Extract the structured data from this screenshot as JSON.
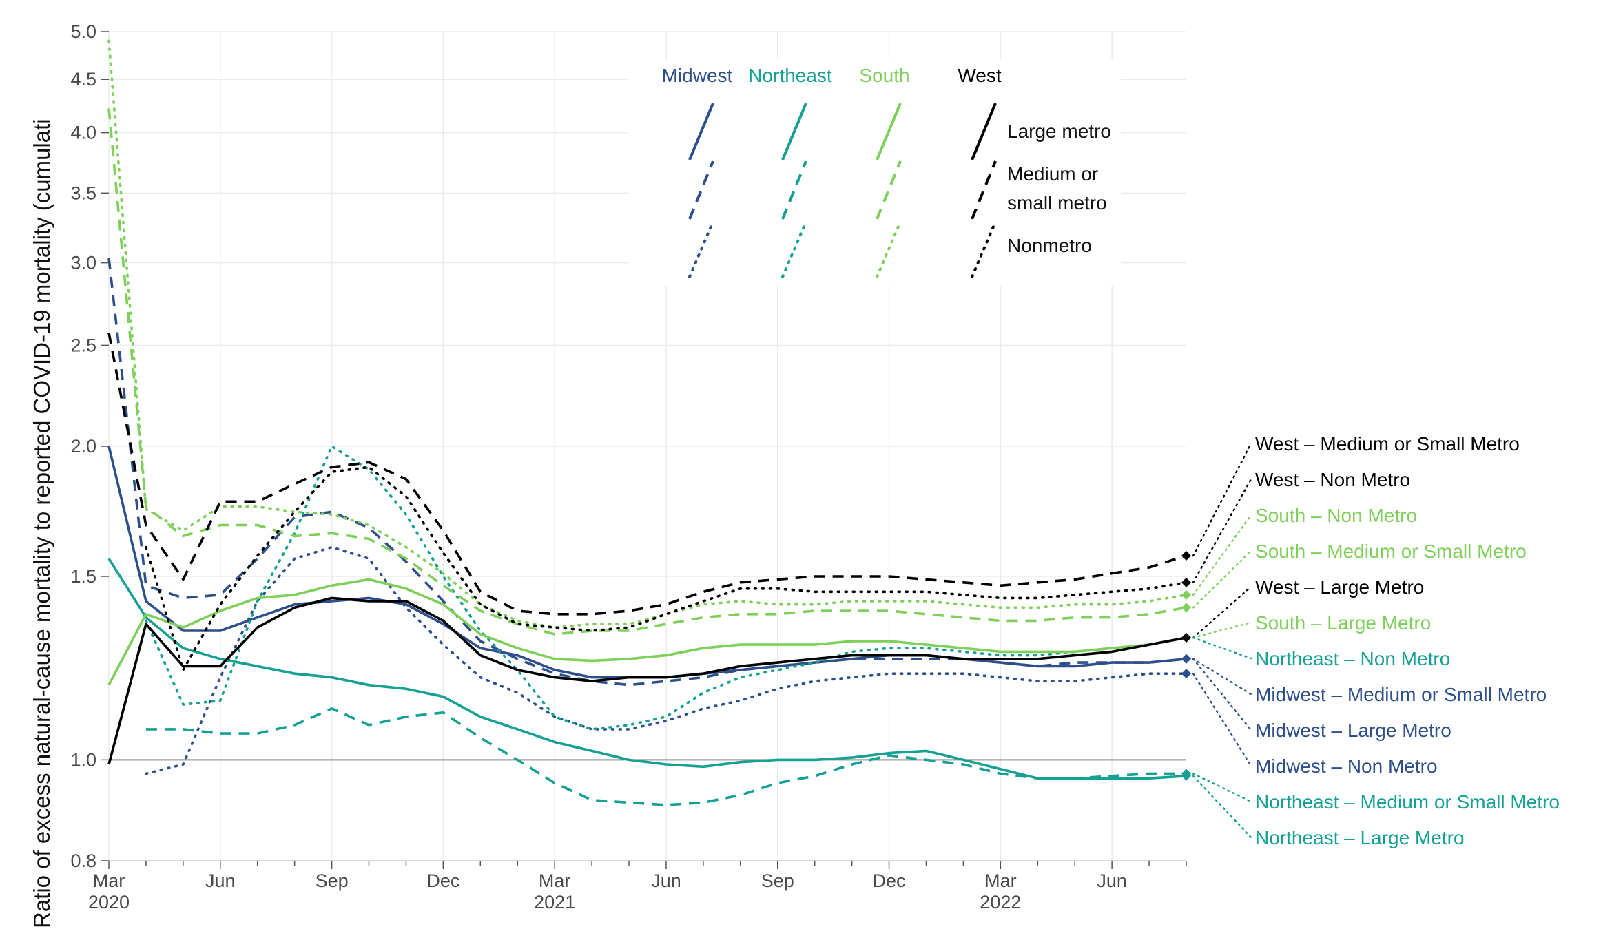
{
  "chart_data": {
    "type": "line",
    "title": "",
    "ylabel": "Ratio of excess natural-cause mortality to reported COVID-19 mortality (cumulati",
    "xlabel": "",
    "y_scale": "log",
    "ylim": [
      0.8,
      5.0
    ],
    "y_ticks": [
      {
        "value": 0.8,
        "label": "0.8"
      },
      {
        "value": 1.0,
        "label": "1.0"
      },
      {
        "value": 1.5,
        "label": "1.5"
      },
      {
        "value": 2.0,
        "label": "2.0"
      },
      {
        "value": 2.5,
        "label": "2.5"
      },
      {
        "value": 3.0,
        "label": "3.0"
      },
      {
        "value": 3.5,
        "label": "3.5"
      },
      {
        "value": 4.0,
        "label": "4.0"
      },
      {
        "value": 4.5,
        "label": "4.5"
      },
      {
        "value": 5.0,
        "label": "5.0"
      }
    ],
    "x": [
      "2020-03",
      "2020-04",
      "2020-05",
      "2020-06",
      "2020-07",
      "2020-08",
      "2020-09",
      "2020-10",
      "2020-11",
      "2020-12",
      "2021-01",
      "2021-02",
      "2021-03",
      "2021-04",
      "2021-05",
      "2021-06",
      "2021-07",
      "2021-08",
      "2021-09",
      "2021-10",
      "2021-11",
      "2021-12",
      "2022-01",
      "2022-02",
      "2022-03",
      "2022-04",
      "2022-05",
      "2022-06",
      "2022-07",
      "2022-08"
    ],
    "x_ticks": [
      {
        "index": 0,
        "label": "Mar",
        "sub": "2020"
      },
      {
        "index": 3,
        "label": "Jun",
        "sub": ""
      },
      {
        "index": 6,
        "label": "Sep",
        "sub": ""
      },
      {
        "index": 9,
        "label": "Dec",
        "sub": ""
      },
      {
        "index": 12,
        "label": "Mar",
        "sub": "2021"
      },
      {
        "index": 15,
        "label": "Jun",
        "sub": ""
      },
      {
        "index": 18,
        "label": "Sep",
        "sub": ""
      },
      {
        "index": 21,
        "label": "Dec",
        "sub": ""
      },
      {
        "index": 24,
        "label": "Mar",
        "sub": "2022"
      },
      {
        "index": 27,
        "label": "Jun",
        "sub": ""
      }
    ],
    "reference_line": 1.0,
    "grid": true,
    "legend": {
      "position": "top-center",
      "regions": [
        {
          "name": "Midwest",
          "color": "#2d4f8c"
        },
        {
          "name": "Northeast",
          "color": "#14a092"
        },
        {
          "name": "South",
          "color": "#7ed05b"
        },
        {
          "name": "West",
          "color": "#000000"
        }
      ],
      "metro": [
        {
          "name": "Large metro",
          "lines": [
            "Large metro"
          ],
          "dash": "solid"
        },
        {
          "name": "Medium or small metro",
          "lines": [
            "Medium or",
            "small metro"
          ],
          "dash": "dashed"
        },
        {
          "name": "Nonmetro",
          "lines": [
            "Nonmetro"
          ],
          "dash": "dotted"
        }
      ]
    },
    "series": [
      {
        "name": "Midwest – Large Metro",
        "region": "Midwest",
        "metro": "Large metro",
        "color": "#2d4f8c",
        "dash": "solid",
        "label_rank": 8,
        "values": [
          2.0,
          1.42,
          1.33,
          1.33,
          1.37,
          1.41,
          1.42,
          1.43,
          1.41,
          1.35,
          1.28,
          1.26,
          1.22,
          1.2,
          1.2,
          1.2,
          1.21,
          1.22,
          1.23,
          1.24,
          1.25,
          1.26,
          1.26,
          1.25,
          1.24,
          1.23,
          1.23,
          1.24,
          1.24,
          1.25
        ]
      },
      {
        "name": "Midwest – Medium or Small Metro",
        "region": "Midwest",
        "metro": "Medium or small metro",
        "color": "#2d4f8c",
        "dash": "dashed",
        "label_rank": 7,
        "values": [
          3.03,
          1.47,
          1.43,
          1.44,
          1.56,
          1.71,
          1.73,
          1.67,
          1.55,
          1.42,
          1.3,
          1.25,
          1.21,
          1.19,
          1.18,
          1.19,
          1.2,
          1.22,
          1.23,
          1.24,
          1.25,
          1.25,
          1.25,
          1.25,
          1.24,
          1.23,
          1.24,
          1.24,
          1.24,
          1.25
        ]
      },
      {
        "name": "Midwest – Non Metro",
        "region": "Midwest",
        "metro": "Nonmetro",
        "color": "#2d4f8c",
        "dash": "dotted",
        "label_rank": 9,
        "values": [
          null,
          0.97,
          0.99,
          1.2,
          1.42,
          1.56,
          1.6,
          1.56,
          1.4,
          1.29,
          1.2,
          1.16,
          1.1,
          1.07,
          1.07,
          1.09,
          1.12,
          1.14,
          1.17,
          1.19,
          1.2,
          1.21,
          1.21,
          1.21,
          1.2,
          1.19,
          1.19,
          1.2,
          1.21,
          1.21
        ]
      },
      {
        "name": "Northeast – Large Metro",
        "region": "Northeast",
        "metro": "Large metro",
        "color": "#14a092",
        "dash": "solid",
        "label_rank": 11,
        "values": [
          1.56,
          1.37,
          1.28,
          1.25,
          1.23,
          1.21,
          1.2,
          1.18,
          1.17,
          1.15,
          1.1,
          1.07,
          1.04,
          1.02,
          1.0,
          0.99,
          0.985,
          0.995,
          1.0,
          1.0,
          1.005,
          1.015,
          1.02,
          1.0,
          0.98,
          0.96,
          0.96,
          0.96,
          0.96,
          0.965
        ]
      },
      {
        "name": "Northeast – Medium or Small Metro",
        "region": "Northeast",
        "metro": "Medium or small metro",
        "color": "#14a092",
        "dash": "dashed",
        "label_rank": 10,
        "values": [
          null,
          1.07,
          1.07,
          1.06,
          1.06,
          1.08,
          1.12,
          1.08,
          1.1,
          1.11,
          1.05,
          1.0,
          0.95,
          0.915,
          0.91,
          0.905,
          0.91,
          0.925,
          0.95,
          0.965,
          0.99,
          1.01,
          1.0,
          0.99,
          0.97,
          0.96,
          0.96,
          0.965,
          0.97,
          0.97
        ]
      },
      {
        "name": "Northeast – Non Metro",
        "region": "Northeast",
        "metro": "Nonmetro",
        "color": "#14a092",
        "dash": "dotted",
        "label_rank": 6,
        "values": [
          null,
          1.36,
          1.13,
          1.14,
          1.42,
          1.65,
          2.0,
          1.9,
          1.72,
          1.5,
          1.33,
          1.22,
          1.1,
          1.07,
          1.08,
          1.1,
          1.16,
          1.2,
          1.22,
          1.24,
          1.27,
          1.28,
          1.28,
          1.27,
          1.26,
          1.26,
          1.27,
          1.28,
          1.29,
          1.31
        ]
      },
      {
        "name": "South – Large Metro",
        "region": "South",
        "metro": "Large metro",
        "color": "#7ed05b",
        "dash": "solid",
        "label_rank": 5,
        "values": [
          1.18,
          1.38,
          1.34,
          1.39,
          1.43,
          1.44,
          1.47,
          1.49,
          1.46,
          1.41,
          1.32,
          1.28,
          1.25,
          1.245,
          1.25,
          1.26,
          1.28,
          1.29,
          1.29,
          1.29,
          1.3,
          1.3,
          1.29,
          1.28,
          1.27,
          1.27,
          1.27,
          1.28,
          1.29,
          1.31
        ]
      },
      {
        "name": "South – Medium or Small Metro",
        "region": "South",
        "metro": "Medium or small metro",
        "color": "#7ed05b",
        "dash": "dashed",
        "label_rank": 3,
        "values": [
          4.22,
          1.75,
          1.64,
          1.68,
          1.68,
          1.64,
          1.65,
          1.63,
          1.56,
          1.47,
          1.39,
          1.35,
          1.32,
          1.33,
          1.33,
          1.35,
          1.37,
          1.38,
          1.38,
          1.39,
          1.39,
          1.39,
          1.38,
          1.37,
          1.36,
          1.36,
          1.37,
          1.37,
          1.38,
          1.4
        ]
      },
      {
        "name": "South – Non Metro",
        "region": "South",
        "metro": "Nonmetro",
        "color": "#7ed05b",
        "dash": "dotted",
        "label_rank": 2,
        "values": [
          4.9,
          1.74,
          1.66,
          1.75,
          1.75,
          1.73,
          1.72,
          1.68,
          1.6,
          1.51,
          1.41,
          1.36,
          1.34,
          1.35,
          1.35,
          1.38,
          1.41,
          1.42,
          1.41,
          1.41,
          1.42,
          1.42,
          1.42,
          1.41,
          1.4,
          1.4,
          1.41,
          1.41,
          1.42,
          1.44
        ]
      },
      {
        "name": "West – Large Metro",
        "region": "West",
        "metro": "Large metro",
        "color": "#000000",
        "dash": "solid",
        "label_rank": 4,
        "values": [
          0.99,
          1.35,
          1.23,
          1.23,
          1.34,
          1.4,
          1.43,
          1.42,
          1.42,
          1.36,
          1.26,
          1.22,
          1.2,
          1.19,
          1.2,
          1.2,
          1.21,
          1.23,
          1.24,
          1.25,
          1.26,
          1.26,
          1.26,
          1.25,
          1.25,
          1.25,
          1.26,
          1.27,
          1.29,
          1.31
        ]
      },
      {
        "name": "West – Medium or Small Metro",
        "region": "West",
        "metro": "Medium or small metro",
        "color": "#000000",
        "dash": "dashed",
        "label_rank": 0,
        "values": [
          2.57,
          1.68,
          1.49,
          1.77,
          1.77,
          1.84,
          1.91,
          1.93,
          1.86,
          1.66,
          1.45,
          1.39,
          1.38,
          1.38,
          1.39,
          1.41,
          1.45,
          1.48,
          1.49,
          1.5,
          1.5,
          1.5,
          1.49,
          1.48,
          1.47,
          1.48,
          1.49,
          1.51,
          1.53,
          1.57
        ]
      },
      {
        "name": "West – Non Metro",
        "region": "West",
        "metro": "Nonmetro",
        "color": "#000000",
        "dash": "dotted",
        "label_rank": 1,
        "values": [
          null,
          1.6,
          1.22,
          1.41,
          1.57,
          1.73,
          1.89,
          1.91,
          1.79,
          1.58,
          1.41,
          1.35,
          1.34,
          1.33,
          1.34,
          1.38,
          1.42,
          1.46,
          1.46,
          1.45,
          1.45,
          1.45,
          1.45,
          1.44,
          1.43,
          1.43,
          1.44,
          1.45,
          1.46,
          1.48
        ]
      }
    ]
  }
}
